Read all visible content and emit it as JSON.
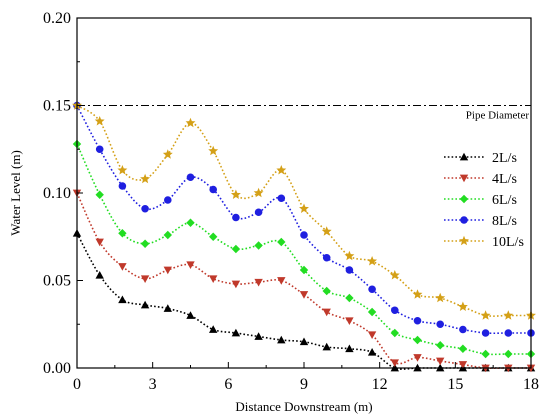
{
  "chart_data": {
    "type": "line",
    "title": "",
    "xlabel": "Distance Downstream (m)",
    "ylabel": "Water Level (m)",
    "xlim": [
      0,
      18
    ],
    "ylim": [
      0,
      0.2
    ],
    "xticks": [
      0,
      3,
      6,
      9,
      12,
      15,
      18
    ],
    "yticks": [
      0.0,
      0.05,
      0.1,
      0.15,
      0.2
    ],
    "xtick_labels": [
      "0",
      "3",
      "6",
      "9",
      "12",
      "15",
      "18"
    ],
    "ytick_labels": [
      "0.00",
      "0.05",
      "0.10",
      "0.15",
      "0.20"
    ],
    "reference_line": {
      "label": "Pipe Diameter",
      "y": 0.15,
      "color": "#000000"
    },
    "legend_position": "right",
    "x": [
      0,
      0.9,
      1.8,
      2.7,
      3.6,
      4.5,
      5.4,
      6.3,
      7.2,
      8.1,
      9.0,
      9.9,
      10.8,
      11.7,
      12.6,
      13.5,
      14.4,
      15.3,
      16.2,
      17.1,
      18.0
    ],
    "series": [
      {
        "name": "2L/s",
        "color": "#000000",
        "marker": "triangle-up",
        "values": [
          0.077,
          0.053,
          0.039,
          0.036,
          0.034,
          0.03,
          0.022,
          0.02,
          0.018,
          0.016,
          0.015,
          0.012,
          0.011,
          0.009,
          0.0,
          0.0,
          0.0,
          0.0,
          0.0,
          0.0,
          0.0
        ]
      },
      {
        "name": "4L/s",
        "color": "#c0392b",
        "marker": "triangle-down",
        "values": [
          0.1,
          0.072,
          0.058,
          0.051,
          0.056,
          0.059,
          0.051,
          0.048,
          0.049,
          0.05,
          0.042,
          0.032,
          0.027,
          0.019,
          0.003,
          0.006,
          0.004,
          0.002,
          0.0,
          0.0,
          0.0
        ]
      },
      {
        "name": "6L/s",
        "color": "#22dd22",
        "marker": "diamond",
        "values": [
          0.128,
          0.099,
          0.077,
          0.071,
          0.076,
          0.083,
          0.075,
          0.068,
          0.07,
          0.072,
          0.056,
          0.044,
          0.04,
          0.032,
          0.02,
          0.016,
          0.013,
          0.011,
          0.008,
          0.008,
          0.008
        ]
      },
      {
        "name": "8L/s",
        "color": "#1f1fe0",
        "marker": "circle",
        "values": [
          0.15,
          0.125,
          0.104,
          0.091,
          0.096,
          0.109,
          0.102,
          0.086,
          0.089,
          0.097,
          0.076,
          0.063,
          0.056,
          0.045,
          0.033,
          0.027,
          0.025,
          0.022,
          0.02,
          0.02,
          0.02
        ]
      },
      {
        "name": "10L/s",
        "color": "#d4a017",
        "marker": "star",
        "values": [
          0.15,
          0.141,
          0.113,
          0.108,
          0.122,
          0.14,
          0.124,
          0.099,
          0.1,
          0.113,
          0.091,
          0.078,
          0.064,
          0.061,
          0.053,
          0.042,
          0.04,
          0.035,
          0.03,
          0.03,
          0.03
        ]
      }
    ]
  }
}
